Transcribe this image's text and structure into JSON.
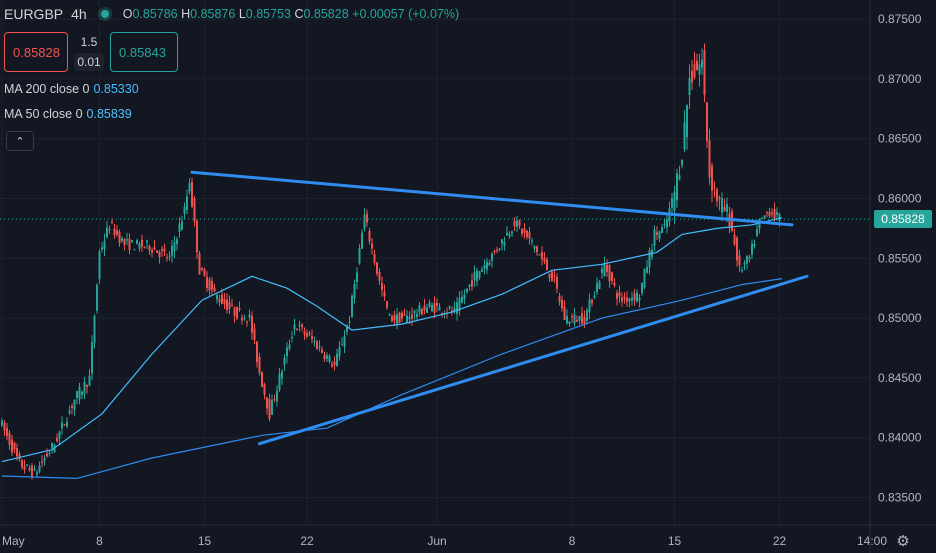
{
  "header": {
    "symbol": "EURGBP",
    "timeframe": "4h",
    "open_label": "O",
    "open": "0.85786",
    "high_label": "H",
    "high": "0.85876",
    "low_label": "L",
    "low": "0.85753",
    "close_label": "C",
    "close": "0.85828",
    "change": "+0.00057 (+0.07%)"
  },
  "order_panel": {
    "sell_price": "0.85828",
    "spread": "1.5",
    "quantity": "0.01",
    "buy_price": "0.85843"
  },
  "indicators": [
    {
      "label": "MA 200 close 0",
      "value": "0.85330"
    },
    {
      "label": "MA 50 close 0",
      "value": "0.85839"
    }
  ],
  "current_price_tag": "0.85828",
  "icons": {
    "collapse": "chevron-up-icon",
    "settings": "gear-icon",
    "status": "market-open-dot-icon"
  },
  "colors": {
    "background": "#131722",
    "up": "#26a69a",
    "down": "#ef5350",
    "trendline": "#2f8cf0",
    "ma200": "#2f8cf0",
    "ma50": "#42bdff",
    "axis_text": "#b2b5be"
  },
  "chart_data": {
    "type": "candlestick",
    "title": "",
    "y_ticks": [
      "0.87500",
      "0.87000",
      "0.86500",
      "0.86000",
      "0.85500",
      "0.85000",
      "0.84500",
      "0.84000",
      "0.83500"
    ],
    "y_tick_values": [
      0.875,
      0.87,
      0.865,
      0.86,
      0.855,
      0.85,
      0.845,
      0.84,
      0.835
    ],
    "ylim": [
      0.8327,
      0.8766
    ],
    "x_ticks": [
      "May",
      "8",
      "15",
      "22",
      "Jun",
      "8",
      "15",
      "22",
      "14:00"
    ],
    "x_tick_index": [
      0,
      39,
      81,
      122,
      174,
      228,
      269,
      311,
      348
    ],
    "bar_count": 312,
    "anchors": [
      [
        0,
        0.8415
      ],
      [
        8,
        0.8378
      ],
      [
        14,
        0.837
      ],
      [
        22,
        0.8395
      ],
      [
        30,
        0.8432
      ],
      [
        36,
        0.845
      ],
      [
        40,
        0.8555
      ],
      [
        44,
        0.8578
      ],
      [
        50,
        0.8562
      ],
      [
        60,
        0.856
      ],
      [
        68,
        0.855
      ],
      [
        74,
        0.859
      ],
      [
        76,
        0.8615
      ],
      [
        80,
        0.854
      ],
      [
        86,
        0.852
      ],
      [
        94,
        0.8505
      ],
      [
        100,
        0.85
      ],
      [
        104,
        0.8455
      ],
      [
        108,
        0.842
      ],
      [
        112,
        0.845
      ],
      [
        118,
        0.8495
      ],
      [
        126,
        0.848
      ],
      [
        134,
        0.846
      ],
      [
        140,
        0.85
      ],
      [
        146,
        0.8585
      ],
      [
        152,
        0.853
      ],
      [
        156,
        0.85
      ],
      [
        162,
        0.85
      ],
      [
        172,
        0.851
      ],
      [
        182,
        0.8505
      ],
      [
        190,
        0.8535
      ],
      [
        198,
        0.8555
      ],
      [
        206,
        0.858
      ],
      [
        214,
        0.856
      ],
      [
        222,
        0.853
      ],
      [
        226,
        0.85
      ],
      [
        234,
        0.85
      ],
      [
        242,
        0.8545
      ],
      [
        248,
        0.8515
      ],
      [
        256,
        0.852
      ],
      [
        262,
        0.857
      ],
      [
        266,
        0.8575
      ],
      [
        270,
        0.8605
      ],
      [
        273,
        0.864
      ],
      [
        276,
        0.87
      ],
      [
        281,
        0.8715
      ],
      [
        284,
        0.862
      ],
      [
        288,
        0.8595
      ],
      [
        292,
        0.8585
      ],
      [
        296,
        0.854
      ],
      [
        300,
        0.855
      ],
      [
        304,
        0.858
      ],
      [
        308,
        0.859
      ],
      [
        312,
        0.8583
      ]
    ],
    "trendlines": [
      {
        "from": [
          76,
          0.8622
        ],
        "to": [
          316,
          0.8578
        ]
      },
      {
        "from": [
          103,
          0.8395
        ],
        "to": [
          322,
          0.8535
        ]
      }
    ],
    "series": [
      {
        "label_ref": "MA 200 close 0",
        "values": [
          [
            0,
            0.8368
          ],
          [
            30,
            0.8366
          ],
          [
            60,
            0.8383
          ],
          [
            104,
            0.8402
          ],
          [
            130,
            0.8408
          ],
          [
            160,
            0.8436
          ],
          [
            200,
            0.847
          ],
          [
            240,
            0.85
          ],
          [
            272,
            0.8515
          ],
          [
            296,
            0.8528
          ],
          [
            312,
            0.8533
          ]
        ]
      },
      {
        "label_ref": "MA 50 close 0",
        "values": [
          [
            0,
            0.838
          ],
          [
            20,
            0.839
          ],
          [
            40,
            0.842
          ],
          [
            60,
            0.847
          ],
          [
            80,
            0.8515
          ],
          [
            100,
            0.8535
          ],
          [
            114,
            0.8525
          ],
          [
            126,
            0.851
          ],
          [
            140,
            0.849
          ],
          [
            160,
            0.8495
          ],
          [
            180,
            0.8505
          ],
          [
            200,
            0.852
          ],
          [
            220,
            0.854
          ],
          [
            240,
            0.8545
          ],
          [
            262,
            0.8555
          ],
          [
            272,
            0.857
          ],
          [
            286,
            0.8575
          ],
          [
            300,
            0.8578
          ],
          [
            312,
            0.8584
          ]
        ]
      }
    ]
  }
}
